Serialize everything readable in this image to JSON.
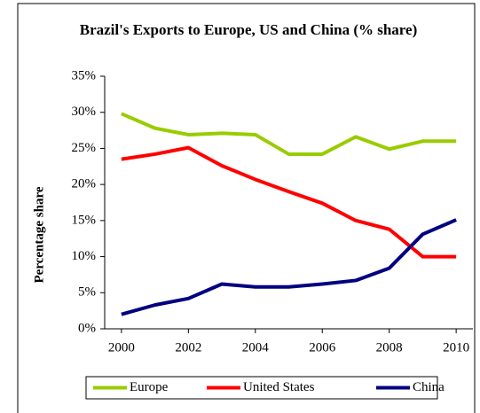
{
  "chart_data": {
    "type": "line",
    "title": "Brazil's Exports to Europe, US and China (% share)",
    "ylabel": "Percentage share",
    "x": [
      2000,
      2001,
      2002,
      2003,
      2004,
      2005,
      2006,
      2007,
      2008,
      2009,
      2010
    ],
    "xlim": [
      1999.5,
      2010.5
    ],
    "xticks": [
      2000,
      2002,
      2004,
      2006,
      2008,
      2010
    ],
    "ylim": [
      0,
      35
    ],
    "yticks": [
      {
        "value": 0,
        "label": "0%"
      },
      {
        "value": 5,
        "label": "5%"
      },
      {
        "value": 10,
        "label": "10%"
      },
      {
        "value": 15,
        "label": "15%"
      },
      {
        "value": 20,
        "label": "20%"
      },
      {
        "value": 25,
        "label": "25%"
      },
      {
        "value": 30,
        "label": "30%"
      },
      {
        "value": 35,
        "label": "35%"
      }
    ],
    "grid": false,
    "legend": "bottom",
    "series": [
      {
        "name": "Europe",
        "color": "#99cc00",
        "values": [
          29.8,
          27.8,
          26.9,
          27.1,
          26.9,
          24.2,
          24.2,
          26.6,
          24.9,
          26.0,
          26.0
        ]
      },
      {
        "name": "United States",
        "color": "#ff0000",
        "values": [
          23.5,
          24.2,
          25.1,
          22.6,
          20.7,
          19.0,
          17.4,
          15.0,
          13.8,
          10.0,
          10.0
        ]
      },
      {
        "name": "China",
        "color": "#000080",
        "values": [
          2.0,
          3.3,
          4.2,
          6.2,
          5.8,
          5.8,
          6.2,
          6.7,
          8.4,
          13.1,
          15.1
        ]
      }
    ]
  }
}
